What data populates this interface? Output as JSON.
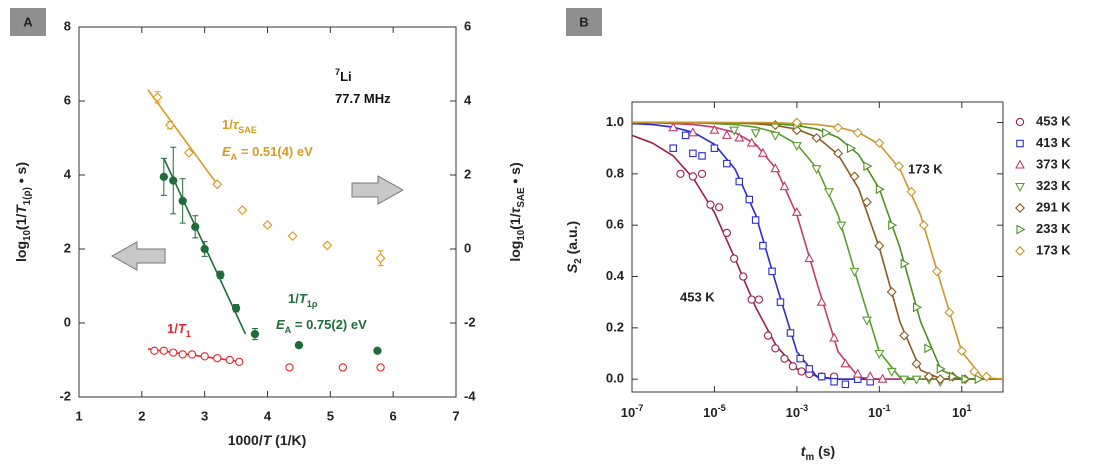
{
  "chart_data": [
    {
      "type": "scatter",
      "panel_label": "A",
      "xlabel": [
        {
          "t": "1000/"
        },
        {
          "t": "T",
          "s": "i"
        },
        {
          "t": " (1/K)"
        }
      ],
      "ylabel": [
        {
          "t": "log"
        },
        {
          "t": "10",
          "s": "sub"
        },
        {
          "t": "(1/"
        },
        {
          "t": "T",
          "s": "i"
        },
        {
          "t": "1(ρ)",
          "s": "sub"
        },
        {
          "t": " • s)"
        }
      ],
      "y2label": [
        {
          "t": "log"
        },
        {
          "t": "10",
          "s": "sub"
        },
        {
          "t": "(1/"
        },
        {
          "t": "τ",
          "s": "i"
        },
        {
          "t": "SAE",
          "s": "sub"
        },
        {
          "t": " • s)"
        }
      ],
      "xlim": [
        1,
        7
      ],
      "xticks": [
        1,
        2,
        3,
        4,
        5,
        6,
        7
      ],
      "ylim": [
        -2,
        8
      ],
      "yticks": [
        -2,
        0,
        2,
        4,
        6,
        8
      ],
      "y2lim": [
        -4,
        6
      ],
      "y2ticks": [
        -4,
        -2,
        0,
        2,
        4,
        6
      ],
      "series": [
        {
          "name": [
            {
              "t": "1/"
            },
            {
              "t": "τ",
              "s": "i"
            },
            {
              "t": "SAE",
              "s": "sub"
            }
          ],
          "color": "#d89b1f",
          "marker": "diamond",
          "filled": false,
          "axis": "y2",
          "x": [
            2.25,
            2.45,
            2.75,
            3.2,
            3.6,
            4.0,
            4.4,
            4.95,
            5.8
          ],
          "values": [
            4.1,
            3.35,
            2.6,
            1.75,
            1.05,
            0.65,
            0.35,
            0.1,
            -0.25
          ],
          "errors": [
            0.15,
            0.1,
            0.05,
            0.05,
            0.05,
            0.05,
            0.05,
            0.05,
            0.2
          ],
          "fit": {
            "x": [
              2.1,
              3.2
            ],
            "y": [
              4.3,
              1.75
            ]
          }
        },
        {
          "name": [
            {
              "t": "1/"
            },
            {
              "t": "T",
              "s": "i"
            },
            {
              "t": "1ρ",
              "s": "sub"
            }
          ],
          "color": "#1f6b3a",
          "marker": "circle",
          "filled": true,
          "x": [
            2.35,
            2.5,
            2.65,
            2.85,
            3.0,
            3.25,
            3.5,
            3.8,
            4.5,
            5.75
          ],
          "values": [
            3.95,
            3.85,
            3.3,
            2.6,
            2.0,
            1.3,
            0.4,
            -0.3,
            -0.6,
            -0.75
          ],
          "errors": [
            0.5,
            0.9,
            0.6,
            0.3,
            0.2,
            0.1,
            0.1,
            0.15,
            0.05,
            0.05
          ],
          "fit": {
            "x": [
              2.35,
              3.65
            ],
            "y": [
              4.45,
              -0.3
            ]
          }
        },
        {
          "name": [
            {
              "t": "1/"
            },
            {
              "t": "T",
              "s": "i"
            },
            {
              "t": "1",
              "s": "sub"
            }
          ],
          "color": "#e5262b",
          "marker": "circle",
          "filled": false,
          "x": [
            2.2,
            2.35,
            2.5,
            2.65,
            2.8,
            3.0,
            3.2,
            3.4,
            3.55,
            4.35,
            5.2,
            5.8
          ],
          "values": [
            -0.75,
            -0.75,
            -0.8,
            -0.85,
            -0.85,
            -0.9,
            -0.95,
            -1.0,
            -1.05,
            -1.2,
            -1.2,
            -1.2
          ],
          "fit": {
            "x": [
              2.1,
              3.6
            ],
            "y": [
              -0.7,
              -1.05
            ]
          }
        }
      ],
      "annotations": [
        {
          "text": [
            {
              "t": "7",
              "s": "sup"
            },
            {
              "t": "Li"
            }
          ],
          "color": "#111111"
        },
        {
          "text": [
            {
              "t": "77.7 MHz"
            }
          ],
          "color": "#111111"
        },
        {
          "text": [
            {
              "t": "E",
              "s": "i"
            },
            {
              "t": "A",
              "s": "sub"
            },
            {
              "t": " = 0.51(4) eV"
            }
          ],
          "color": "#d89b1f"
        },
        {
          "text": [
            {
              "t": "E",
              "s": "i"
            },
            {
              "t": "A",
              "s": "sub"
            },
            {
              "t": " = 0.75(2) eV"
            }
          ],
          "color": "#1f6b3a"
        }
      ]
    },
    {
      "type": "scatter",
      "panel_label": "B",
      "xscale": "log",
      "xlabel": [
        {
          "t": "t",
          "s": "i"
        },
        {
          "t": "m",
          "s": "sub"
        },
        {
          "t": " (s)"
        }
      ],
      "ylabel": [
        {
          "t": "S",
          "s": "i"
        },
        {
          "t": "2",
          "s": "sub"
        },
        {
          "t": " (a.u.)"
        }
      ],
      "xlim": [
        1e-07,
        100
      ],
      "xticks": [
        {
          "value": 1e-07,
          "label": "10",
          "exp": "-7"
        },
        {
          "value": 1e-05,
          "label": "10",
          "exp": "-5"
        },
        {
          "value": 0.001,
          "label": "10",
          "exp": "-3"
        },
        {
          "value": 0.1,
          "label": "10",
          "exp": "-1"
        },
        {
          "value": 10,
          "label": "10",
          "exp": "1"
        }
      ],
      "ylim": [
        -0.05,
        1.08
      ],
      "yticks": [
        {
          "value": 0,
          "label": "0.0"
        },
        0.2,
        0.4,
        0.6,
        0.8,
        {
          "value": 1,
          "label": "1.0"
        }
      ],
      "fit_x": [
        1e-07,
        3.16e-07,
        1e-06,
        3.16e-06,
        1e-05,
        3.16e-05,
        0.0001,
        0.000316,
        0.001,
        0.00316,
        0.01,
        0.0316,
        0.1,
        0.316,
        1,
        3.16,
        10,
        31.6,
        100
      ],
      "series": [
        {
          "name": "453 K",
          "color": "#9c1f4f",
          "marker": "circle",
          "x": [
            1.5e-06,
            3e-06,
            5e-06,
            8e-06,
            1.3e-05,
            2e-05,
            3e-05,
            5e-05,
            8e-05,
            0.00012,
            0.0002,
            0.0003,
            0.0005,
            0.0008,
            0.0013,
            0.002,
            0.004,
            0.008
          ],
          "values": [
            0.8,
            0.79,
            0.8,
            0.68,
            0.67,
            0.57,
            0.47,
            0.4,
            0.31,
            0.31,
            0.17,
            0.12,
            0.08,
            0.05,
            0.03,
            0.02,
            0.01,
            0.01
          ],
          "fit_y": [
            0.95,
            0.92,
            0.87,
            0.78,
            0.65,
            0.47,
            0.28,
            0.13,
            0.04,
            0.01,
            0,
            0,
            0,
            0,
            0,
            0,
            0,
            0,
            0
          ]
        },
        {
          "name": "413 K",
          "color": "#2b2bd1",
          "marker": "square",
          "x": [
            1e-06,
            2e-06,
            3e-06,
            5e-06,
            1e-05,
            2e-05,
            4e-05,
            7e-05,
            0.0001,
            0.00015,
            0.00025,
            0.0004,
            0.0007,
            0.0012,
            0.002,
            0.004,
            0.008,
            0.015,
            0.03,
            0.06
          ],
          "values": [
            0.9,
            0.95,
            0.88,
            0.87,
            0.9,
            0.84,
            0.77,
            0.7,
            0.62,
            0.52,
            0.42,
            0.3,
            0.18,
            0.08,
            0.04,
            0.01,
            -0.01,
            -0.02,
            0,
            -0.01
          ],
          "fit_y": [
            0.996,
            0.992,
            0.982,
            0.961,
            0.915,
            0.819,
            0.64,
            0.368,
            0.107,
            0.007,
            0,
            0,
            0,
            0,
            0,
            0,
            0,
            0,
            0
          ]
        },
        {
          "name": "373 K",
          "color": "#c23b6a",
          "marker": "triangle-up",
          "x": [
            1e-06,
            3e-06,
            1e-05,
            2e-05,
            4e-05,
            8e-05,
            0.00015,
            0.0003,
            0.0005,
            0.001,
            0.002,
            0.004,
            0.008,
            0.015,
            0.03,
            0.06,
            0.12
          ],
          "values": [
            0.98,
            0.96,
            0.97,
            0.95,
            0.94,
            0.92,
            0.88,
            0.82,
            0.75,
            0.65,
            0.47,
            0.3,
            0.16,
            0.06,
            0.02,
            0.01,
            0
          ],
          "fit_y": [
            1,
            0.999,
            0.996,
            0.992,
            0.982,
            0.961,
            0.915,
            0.819,
            0.64,
            0.368,
            0.107,
            0.007,
            0,
            0,
            0,
            0,
            0,
            0,
            0
          ]
        },
        {
          "name": "323 K",
          "color": "#5a9e2f",
          "marker": "triangle-down",
          "x": [
            3e-05,
            0.0001,
            0.0003,
            0.001,
            0.003,
            0.006,
            0.012,
            0.025,
            0.05,
            0.1,
            0.2,
            0.4,
            0.8,
            1.6,
            3
          ],
          "values": [
            0.97,
            0.96,
            0.95,
            0.91,
            0.82,
            0.73,
            0.6,
            0.42,
            0.23,
            0.1,
            0.03,
            0,
            0,
            0,
            -0.01
          ],
          "fit_y": [
            1,
            1,
            1,
            0.999,
            0.996,
            0.992,
            0.982,
            0.961,
            0.915,
            0.819,
            0.64,
            0.368,
            0.107,
            0.007,
            0,
            0,
            0,
            0,
            0
          ]
        },
        {
          "name": "291 K",
          "color": "#8a5a22",
          "marker": "diamond",
          "x": [
            0.0003,
            0.001,
            0.003,
            0.01,
            0.025,
            0.05,
            0.1,
            0.2,
            0.4,
            0.8,
            1.6,
            3,
            6,
            12
          ],
          "values": [
            0.99,
            0.97,
            0.94,
            0.88,
            0.79,
            0.69,
            0.52,
            0.34,
            0.17,
            0.06,
            0.01,
            0,
            0.01,
            0
          ],
          "fit_y": [
            1,
            1,
            1,
            1,
            0.999,
            0.998,
            0.995,
            0.988,
            0.974,
            0.942,
            0.875,
            0.742,
            0.513,
            0.224,
            0.035,
            0.001,
            0,
            0,
            0
          ]
        },
        {
          "name": "233 K",
          "color": "#4f8f20",
          "marker": "triangle-right",
          "x": [
            0.001,
            0.005,
            0.02,
            0.05,
            0.1,
            0.2,
            0.4,
            0.8,
            1.5,
            3,
            6,
            12,
            25
          ],
          "values": [
            0.99,
            0.96,
            0.9,
            0.83,
            0.74,
            0.6,
            0.45,
            0.28,
            0.12,
            0.04,
            0.01,
            0,
            0
          ],
          "fit_y": [
            1,
            1,
            1,
            1,
            1,
            0.999,
            0.998,
            0.995,
            0.988,
            0.974,
            0.942,
            0.875,
            0.742,
            0.513,
            0.224,
            0.035,
            0.001,
            0,
            0
          ]
        },
        {
          "name": "173 K",
          "color": "#c9972c",
          "marker": "diamond",
          "x": [
            0.001,
            0.01,
            0.03,
            0.1,
            0.3,
            0.6,
            1.2,
            2.5,
            5,
            10,
            20,
            40
          ],
          "values": [
            1.0,
            0.98,
            0.96,
            0.92,
            0.83,
            0.73,
            0.6,
            0.42,
            0.26,
            0.11,
            0.03,
            0.01
          ],
          "fit_y": [
            1,
            1,
            1,
            1,
            1,
            1,
            1,
            0.999,
            0.996,
            0.992,
            0.982,
            0.961,
            0.915,
            0.819,
            0.64,
            0.368,
            0.107,
            0.007,
            0
          ]
        }
      ],
      "annotations": [
        {
          "text": "173 K",
          "color": "#111111"
        },
        {
          "text": "453 K",
          "color": "#111111"
        }
      ]
    }
  ]
}
